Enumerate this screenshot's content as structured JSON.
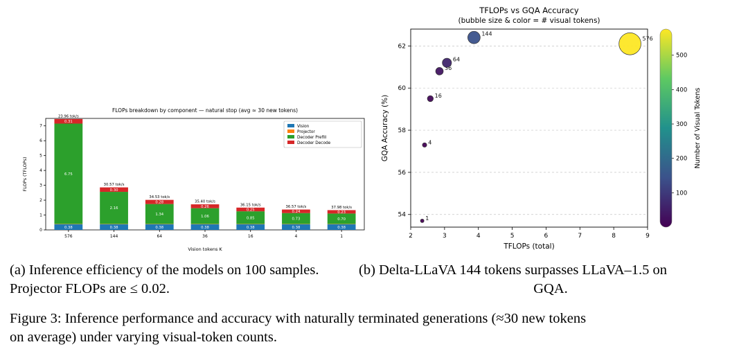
{
  "captions": {
    "a_line1": "(a) Inference efficiency of the models on 100 samples.",
    "a_line2": "Projector FLOPs are ≤ 0.02.",
    "b_line1": "(b) Delta-LLaVA 144 tokens surpasses LLaVA–1.5 on",
    "b_line2": "GQA.",
    "fig_line1": "Figure 3: Inference performance and accuracy with naturally terminated generations (≈30 new tokens",
    "fig_line2": "on average) under varying visual-token counts."
  },
  "chart_data": [
    {
      "type": "bar",
      "title": "FLOPs breakdown by component — natural stop (avg ≈ 30 new tokens)",
      "xlabel": "Vision tokens K",
      "ylabel": "FLOPs (TFLOPs)",
      "ylim": [
        0,
        7.5
      ],
      "yticks": [
        0,
        1,
        2,
        3,
        4,
        5,
        6,
        7
      ],
      "categories": [
        "576",
        "144",
        "64",
        "36",
        "16",
        "4",
        "1"
      ],
      "stacked": true,
      "legend_position": "upper right",
      "series": [
        {
          "name": "Vision",
          "color": "#1f77b4",
          "values": [
            0.38,
            0.38,
            0.38,
            0.38,
            0.38,
            0.38,
            0.38
          ]
        },
        {
          "name": "Projector",
          "color": "#ff7f0e",
          "values": [
            0.02,
            0.02,
            0.02,
            0.02,
            0.02,
            0.02,
            0.02
          ]
        },
        {
          "name": "Decoder Prefill",
          "color": "#2ca02c",
          "values": [
            6.75,
            2.16,
            1.34,
            1.06,
            0.85,
            0.73,
            0.7
          ]
        },
        {
          "name": "Decoder Decode",
          "color": "#d62728",
          "values": [
            0.31,
            0.3,
            0.28,
            0.26,
            0.25,
            0.24,
            0.23
          ]
        }
      ],
      "bar_top_labels": [
        "23.96 tok/s",
        "30.57 tok/s",
        "34.53 tok/s",
        "35.40 tok/s",
        "36.15 tok/s",
        "36.57 tok/s",
        "37.98 tok/s"
      ]
    },
    {
      "type": "scatter",
      "title": "TFLOPs vs GQA Accuracy",
      "subtitle": "(bubble size & color = # visual tokens)",
      "xlabel": "TFLOPs (total)",
      "ylabel": "GQA Accuracy (%)",
      "xlim": [
        2,
        9
      ],
      "ylim": [
        53.4,
        62.8
      ],
      "xticks": [
        2,
        3,
        4,
        5,
        6,
        7,
        8,
        9
      ],
      "yticks": [
        54,
        56,
        58,
        60,
        62
      ],
      "grid": "dashed-horizontal",
      "colorbar": {
        "label": "Number of Visual Tokens",
        "ticks": [
          100,
          200,
          300,
          400,
          500
        ],
        "min": 0,
        "max": 576,
        "colormap": "viridis"
      },
      "points": [
        {
          "tokens": 1,
          "x": 2.34,
          "y": 53.7
        },
        {
          "tokens": 4,
          "x": 2.41,
          "y": 57.3
        },
        {
          "tokens": 16,
          "x": 2.58,
          "y": 59.5
        },
        {
          "tokens": 36,
          "x": 2.85,
          "y": 60.8
        },
        {
          "tokens": 64,
          "x": 3.07,
          "y": 61.2
        },
        {
          "tokens": 144,
          "x": 3.87,
          "y": 62.4
        },
        {
          "tokens": 576,
          "x": 8.48,
          "y": 62.1
        }
      ]
    }
  ]
}
